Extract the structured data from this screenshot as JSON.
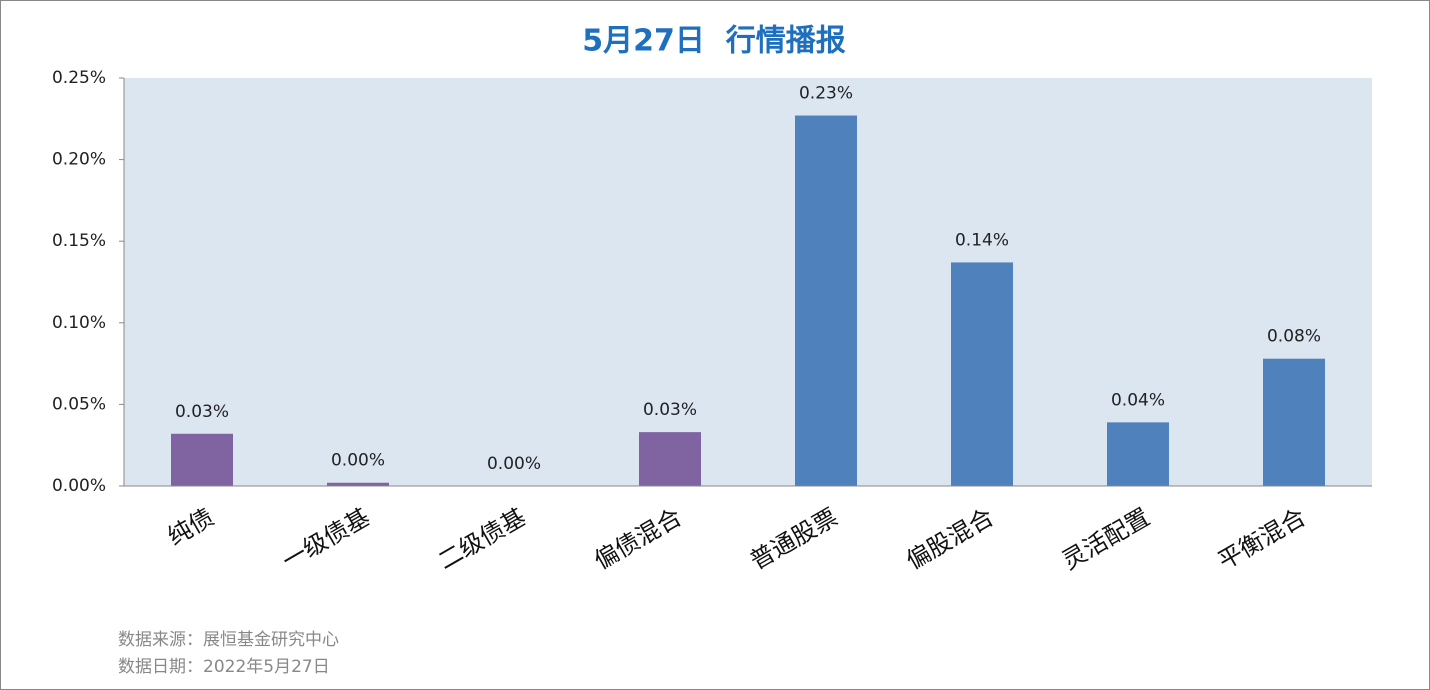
{
  "chart_data": {
    "type": "bar",
    "title": "5月27日  行情播报",
    "categories": [
      "纯债",
      "一级债基",
      "二级债基",
      "偏债混合",
      "普通股票",
      "偏股混合",
      "灵活配置",
      "平衡混合"
    ],
    "values": [
      0.032,
      0.002,
      0,
      0.033,
      0.227,
      0.137,
      0.039,
      0.078
    ],
    "value_labels": [
      "0.03%",
      "0.00%",
      "0.00%",
      "0.03%",
      "0.23%",
      "0.14%",
      "0.04%",
      "0.08%"
    ],
    "colors": [
      "#8064a2",
      "#8064a2",
      "#8064a2",
      "#8064a2",
      "#4f81bd",
      "#4f81bd",
      "#4f81bd",
      "#4f81bd"
    ],
    "ylim": [
      0,
      0.25
    ],
    "yticks": [
      {
        "value": 0,
        "label": "0.00%"
      },
      {
        "value": 0.05,
        "label": "0.05%"
      },
      {
        "value": 0.1,
        "label": "0.10%"
      },
      {
        "value": 0.15,
        "label": "0.15%"
      },
      {
        "value": 0.2,
        "label": "0.20%"
      },
      {
        "value": 0.25,
        "label": "0.25%"
      }
    ],
    "plot_background": "#dce6f1",
    "notes": [
      "数据来源：展恒基金研究中心",
      "数据日期：2022年5月27日"
    ]
  }
}
